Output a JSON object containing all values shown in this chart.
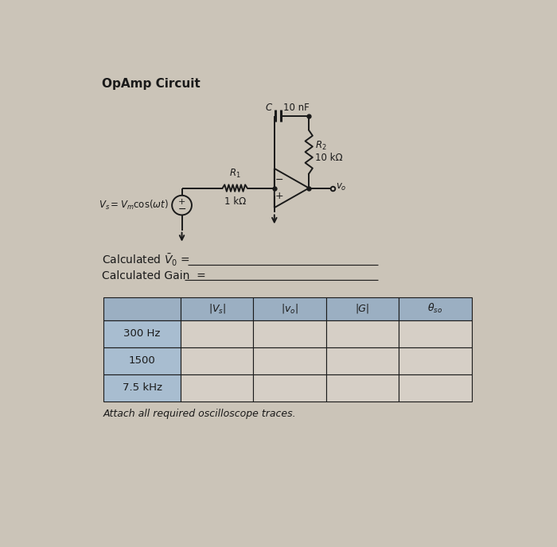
{
  "title": "OpAmp Circuit",
  "bg_color": "#cbc4b8",
  "text_color": "#1a1a1a",
  "calc_v0_label": "Calculated $\\bar{V}_0$ =",
  "calc_gain_label": "Calculated Gain  =",
  "table_headers": [
    "|$V_s$|",
    "|$v_o$|",
    "|G|",
    "$\\theta_{so}$"
  ],
  "table_rows": [
    "300 Hz",
    "1500",
    "7.5 kHz"
  ],
  "footnote": "Attach all required oscilloscope traces.",
  "header_bg": "#9bafc2",
  "row_label_bg": "#a8bdd0",
  "cell_bg": "#d6cfc6",
  "vs_label": "$V_s = V_m \\cos(\\omega t)$",
  "r1_label": "$R_1$",
  "r1_value": "1 kΩ",
  "r2_label": "$R_2$",
  "r2_value": "10 kΩ",
  "c_label": "C",
  "c_value": "10 nF",
  "vo_label": "$v_o$"
}
